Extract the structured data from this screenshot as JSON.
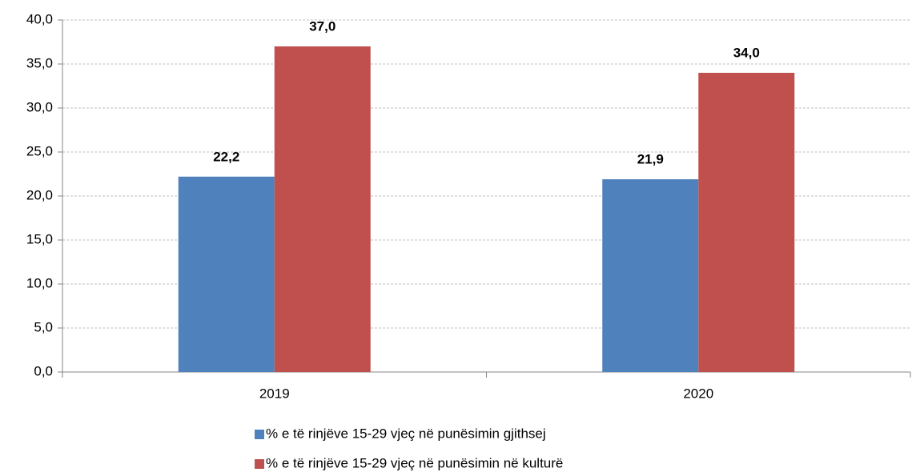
{
  "chart_data": {
    "type": "bar",
    "categories": [
      "2019",
      "2020"
    ],
    "series": [
      {
        "name": "% e të rinjëve 15-29 vjeç në punësimin gjithsej",
        "color": "#4f81bd",
        "values": [
          22.2,
          21.9
        ],
        "value_labels": [
          "22,2",
          "21,9"
        ]
      },
      {
        "name": "% e të rinjëve 15-29 vjeç në punësimin në kulturë",
        "color": "#c0504d",
        "values": [
          37.0,
          34.0
        ],
        "value_labels": [
          "37,0",
          "34,0"
        ]
      }
    ],
    "ylim": [
      0,
      40
    ],
    "yticks": [
      {
        "value": 0,
        "label": "0,0"
      },
      {
        "value": 5,
        "label": "5,0"
      },
      {
        "value": 10,
        "label": "10,0"
      },
      {
        "value": 15,
        "label": "15,0"
      },
      {
        "value": 20,
        "label": "20,0"
      },
      {
        "value": 25,
        "label": "25,0"
      },
      {
        "value": 30,
        "label": "30,0"
      },
      {
        "value": 35,
        "label": "35,0"
      },
      {
        "value": 40,
        "label": "40,0"
      }
    ],
    "grid": true
  }
}
